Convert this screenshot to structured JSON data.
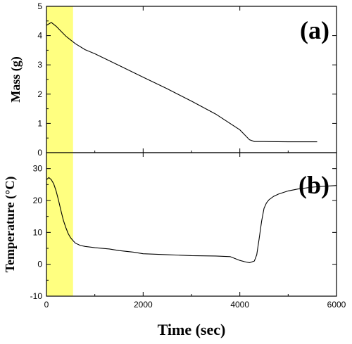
{
  "chart_data": [
    {
      "type": "line",
      "panel_label": "(a)",
      "ylabel": "Mass (g)",
      "xlim": [
        0,
        6000
      ],
      "ylim": [
        0,
        5
      ],
      "yticks": [
        0,
        1,
        2,
        3,
        4,
        5
      ],
      "shaded_region": {
        "x_start": 0,
        "x_end": 550,
        "color": "#ffff80"
      },
      "series": [
        {
          "x": [
            0,
            100,
            200,
            300,
            400,
            500,
            600,
            800,
            1000,
            1500,
            2000,
            2500,
            3000,
            3500,
            4000,
            4200,
            4300,
            4500,
            5000,
            5600
          ],
          "y": [
            4.35,
            4.45,
            4.32,
            4.15,
            3.98,
            3.85,
            3.72,
            3.52,
            3.38,
            2.98,
            2.58,
            2.18,
            1.76,
            1.32,
            0.78,
            0.44,
            0.38,
            0.38,
            0.37,
            0.37
          ]
        }
      ]
    },
    {
      "type": "line",
      "panel_label": "(b)",
      "ylabel": "Temperature (°C)",
      "xlabel": "Time  (sec)",
      "xlim": [
        0,
        6000
      ],
      "ylim": [
        -10,
        35
      ],
      "yticks": [
        -10,
        0,
        10,
        20,
        30
      ],
      "xticks": [
        0,
        2000,
        4000,
        6000
      ],
      "shaded_region": {
        "x_start": 0,
        "x_end": 550,
        "color": "#ffff80"
      },
      "series": [
        {
          "x": [
            0,
            50,
            100,
            150,
            200,
            250,
            300,
            350,
            400,
            450,
            500,
            550,
            600,
            700,
            800,
            1000,
            1300,
            1500,
            1800,
            2000,
            2500,
            3000,
            3500,
            3800,
            3900,
            4000,
            4100,
            4200,
            4300,
            4350,
            4400,
            4450,
            4500,
            4550,
            4600,
            4700,
            4800,
            5000,
            5200,
            5500,
            5800,
            6000
          ],
          "y": [
            26.5,
            27.2,
            26.5,
            25.2,
            23.0,
            20.0,
            16.8,
            13.8,
            11.5,
            9.6,
            8.3,
            7.4,
            6.6,
            5.9,
            5.6,
            5.2,
            4.8,
            4.3,
            3.8,
            3.3,
            3.0,
            2.7,
            2.6,
            2.4,
            1.8,
            1.2,
            0.8,
            0.5,
            1.0,
            3.0,
            8.0,
            13.5,
            17.5,
            19.2,
            20.2,
            21.3,
            22.0,
            23.0,
            23.6,
            24.2,
            24.5,
            24.7
          ]
        }
      ]
    }
  ]
}
